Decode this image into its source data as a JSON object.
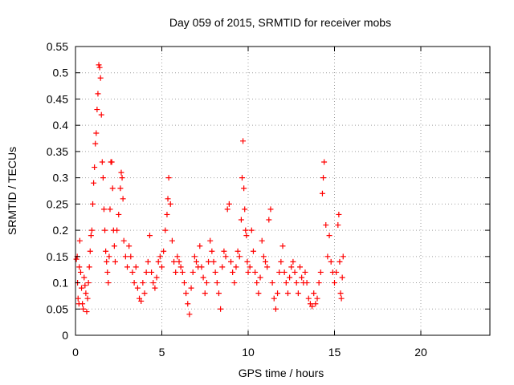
{
  "chart_data": {
    "type": "scatter",
    "title": "Day 059 of 2015, SRMTID for receiver mobs",
    "xlabel": "GPS time / hours",
    "ylabel": "SRMTID / TECUs",
    "xlim": [
      0,
      24
    ],
    "ylim": [
      0,
      0.55
    ],
    "xticks": [
      0,
      5,
      10,
      15,
      20
    ],
    "yticks": [
      0,
      0.05,
      0.1,
      0.15,
      0.2,
      0.25,
      0.3,
      0.35,
      0.4,
      0.45,
      0.5,
      0.55
    ],
    "grid": true,
    "marker": "plus",
    "color": "#ff0000",
    "series": [
      {
        "points": [
          [
            0.05,
            0.145
          ],
          [
            0.1,
            0.15
          ],
          [
            0.12,
            0.1
          ],
          [
            0.15,
            0.07
          ],
          [
            0.2,
            0.06
          ],
          [
            0.22,
            0.13
          ],
          [
            0.25,
            0.18
          ],
          [
            0.3,
            0.12
          ],
          [
            0.35,
            0.09
          ],
          [
            0.4,
            0.06
          ],
          [
            0.45,
            0.05
          ],
          [
            0.5,
            0.11
          ],
          [
            0.55,
            0.095
          ],
          [
            0.6,
            0.08
          ],
          [
            0.65,
            0.045
          ],
          [
            0.7,
            0.07
          ],
          [
            0.75,
            0.1
          ],
          [
            0.8,
            0.13
          ],
          [
            0.85,
            0.16
          ],
          [
            0.9,
            0.19
          ],
          [
            0.95,
            0.2
          ],
          [
            1.0,
            0.25
          ],
          [
            1.05,
            0.29
          ],
          [
            1.1,
            0.32
          ],
          [
            1.15,
            0.365
          ],
          [
            1.2,
            0.385
          ],
          [
            1.25,
            0.43
          ],
          [
            1.3,
            0.46
          ],
          [
            1.35,
            0.515
          ],
          [
            1.4,
            0.51
          ],
          [
            1.45,
            0.49
          ],
          [
            1.5,
            0.42
          ],
          [
            1.55,
            0.33
          ],
          [
            1.6,
            0.3
          ],
          [
            1.65,
            0.24
          ],
          [
            1.7,
            0.2
          ],
          [
            1.75,
            0.16
          ],
          [
            1.8,
            0.14
          ],
          [
            1.85,
            0.12
          ],
          [
            1.9,
            0.1
          ],
          [
            1.95,
            0.15
          ],
          [
            2.0,
            0.24
          ],
          [
            2.05,
            0.33
          ],
          [
            2.1,
            0.33
          ],
          [
            2.15,
            0.28
          ],
          [
            2.2,
            0.2
          ],
          [
            2.25,
            0.17
          ],
          [
            2.3,
            0.14
          ],
          [
            2.4,
            0.2
          ],
          [
            2.5,
            0.23
          ],
          [
            2.6,
            0.28
          ],
          [
            2.65,
            0.31
          ],
          [
            2.7,
            0.3
          ],
          [
            2.75,
            0.26
          ],
          [
            2.8,
            0.18
          ],
          [
            2.9,
            0.15
          ],
          [
            3.0,
            0.13
          ],
          [
            3.1,
            0.17
          ],
          [
            3.2,
            0.15
          ],
          [
            3.3,
            0.12
          ],
          [
            3.4,
            0.1
          ],
          [
            3.5,
            0.13
          ],
          [
            3.6,
            0.09
          ],
          [
            3.7,
            0.07
          ],
          [
            3.8,
            0.065
          ],
          [
            3.9,
            0.1
          ],
          [
            4.0,
            0.08
          ],
          [
            4.1,
            0.12
          ],
          [
            4.2,
            0.14
          ],
          [
            4.3,
            0.19
          ],
          [
            4.4,
            0.12
          ],
          [
            4.5,
            0.1
          ],
          [
            4.6,
            0.09
          ],
          [
            4.7,
            0.11
          ],
          [
            4.8,
            0.14
          ],
          [
            4.9,
            0.15
          ],
          [
            5.0,
            0.13
          ],
          [
            5.1,
            0.16
          ],
          [
            5.2,
            0.2
          ],
          [
            5.3,
            0.23
          ],
          [
            5.35,
            0.26
          ],
          [
            5.4,
            0.3
          ],
          [
            5.5,
            0.25
          ],
          [
            5.6,
            0.18
          ],
          [
            5.7,
            0.14
          ],
          [
            5.8,
            0.12
          ],
          [
            5.9,
            0.15
          ],
          [
            6.0,
            0.14
          ],
          [
            6.1,
            0.13
          ],
          [
            6.2,
            0.12
          ],
          [
            6.3,
            0.1
          ],
          [
            6.4,
            0.08
          ],
          [
            6.5,
            0.06
          ],
          [
            6.6,
            0.04
          ],
          [
            6.7,
            0.09
          ],
          [
            6.8,
            0.12
          ],
          [
            6.9,
            0.15
          ],
          [
            7.0,
            0.14
          ],
          [
            7.1,
            0.13
          ],
          [
            7.2,
            0.17
          ],
          [
            7.3,
            0.13
          ],
          [
            7.4,
            0.11
          ],
          [
            7.5,
            0.08
          ],
          [
            7.6,
            0.1
          ],
          [
            7.7,
            0.14
          ],
          [
            7.8,
            0.18
          ],
          [
            7.9,
            0.16
          ],
          [
            8.0,
            0.14
          ],
          [
            8.1,
            0.12
          ],
          [
            8.2,
            0.1
          ],
          [
            8.3,
            0.08
          ],
          [
            8.4,
            0.05
          ],
          [
            8.5,
            0.13
          ],
          [
            8.6,
            0.16
          ],
          [
            8.7,
            0.15
          ],
          [
            8.8,
            0.24
          ],
          [
            8.9,
            0.25
          ],
          [
            9.0,
            0.14
          ],
          [
            9.1,
            0.12
          ],
          [
            9.2,
            0.1
          ],
          [
            9.3,
            0.13
          ],
          [
            9.4,
            0.16
          ],
          [
            9.5,
            0.15
          ],
          [
            9.6,
            0.22
          ],
          [
            9.65,
            0.3
          ],
          [
            9.7,
            0.37
          ],
          [
            9.75,
            0.28
          ],
          [
            9.8,
            0.24
          ],
          [
            9.85,
            0.2
          ],
          [
            9.9,
            0.19
          ],
          [
            9.95,
            0.14
          ],
          [
            10.0,
            0.12
          ],
          [
            10.1,
            0.13
          ],
          [
            10.2,
            0.2
          ],
          [
            10.3,
            0.16
          ],
          [
            10.4,
            0.12
          ],
          [
            10.5,
            0.1
          ],
          [
            10.6,
            0.08
          ],
          [
            10.7,
            0.11
          ],
          [
            10.8,
            0.18
          ],
          [
            10.9,
            0.15
          ],
          [
            11.0,
            0.14
          ],
          [
            11.1,
            0.13
          ],
          [
            11.2,
            0.22
          ],
          [
            11.3,
            0.24
          ],
          [
            11.4,
            0.1
          ],
          [
            11.5,
            0.07
          ],
          [
            11.6,
            0.05
          ],
          [
            11.7,
            0.08
          ],
          [
            11.8,
            0.12
          ],
          [
            11.9,
            0.14
          ],
          [
            12.0,
            0.17
          ],
          [
            12.1,
            0.12
          ],
          [
            12.2,
            0.1
          ],
          [
            12.3,
            0.08
          ],
          [
            12.4,
            0.11
          ],
          [
            12.5,
            0.13
          ],
          [
            12.6,
            0.14
          ],
          [
            12.7,
            0.12
          ],
          [
            12.8,
            0.1
          ],
          [
            12.9,
            0.08
          ],
          [
            13.0,
            0.13
          ],
          [
            13.1,
            0.11
          ],
          [
            13.2,
            0.1
          ],
          [
            13.3,
            0.12
          ],
          [
            13.4,
            0.1
          ],
          [
            13.5,
            0.07
          ],
          [
            13.6,
            0.06
          ],
          [
            13.7,
            0.055
          ],
          [
            13.8,
            0.08
          ],
          [
            13.9,
            0.06
          ],
          [
            14.0,
            0.07
          ],
          [
            14.1,
            0.1
          ],
          [
            14.2,
            0.12
          ],
          [
            14.3,
            0.27
          ],
          [
            14.35,
            0.3
          ],
          [
            14.4,
            0.33
          ],
          [
            14.5,
            0.21
          ],
          [
            14.6,
            0.15
          ],
          [
            14.7,
            0.19
          ],
          [
            14.8,
            0.14
          ],
          [
            14.9,
            0.12
          ],
          [
            15.0,
            0.1
          ],
          [
            15.1,
            0.12
          ],
          [
            15.2,
            0.21
          ],
          [
            15.25,
            0.23
          ],
          [
            15.3,
            0.14
          ],
          [
            15.35,
            0.08
          ],
          [
            15.4,
            0.07
          ],
          [
            15.45,
            0.11
          ],
          [
            15.5,
            0.15
          ]
        ]
      }
    ]
  }
}
